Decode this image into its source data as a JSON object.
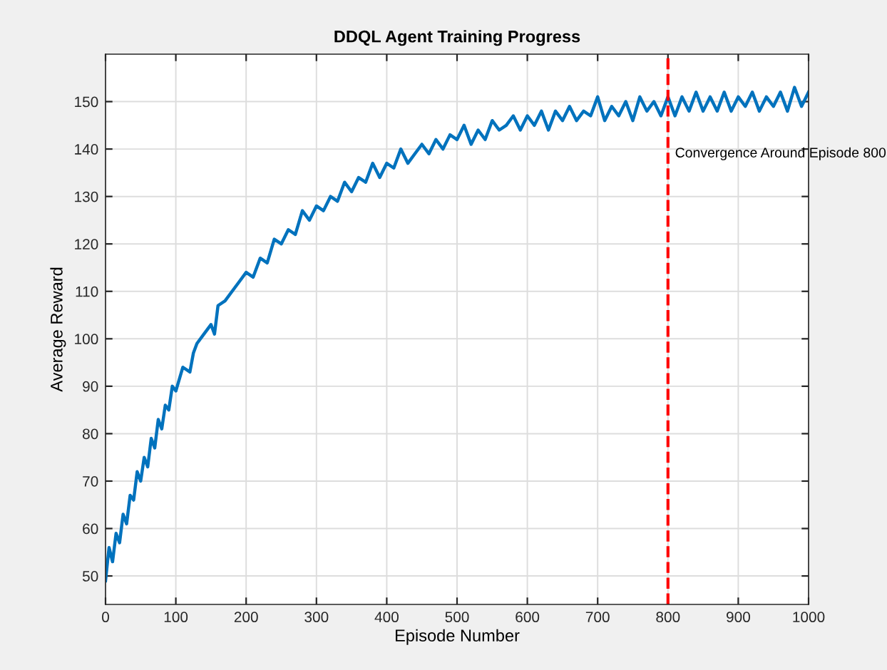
{
  "chart_data": {
    "type": "line",
    "title": "DDQL Agent Training Progress",
    "xlabel": "Episode Number",
    "ylabel": "Average Reward",
    "x": [
      0,
      5,
      10,
      15,
      20,
      25,
      30,
      35,
      40,
      45,
      50,
      55,
      60,
      65,
      70,
      75,
      80,
      85,
      90,
      95,
      100,
      110,
      120,
      125,
      130,
      140,
      150,
      155,
      160,
      170,
      180,
      190,
      200,
      210,
      220,
      230,
      240,
      250,
      260,
      270,
      280,
      290,
      300,
      310,
      320,
      330,
      340,
      350,
      360,
      370,
      380,
      390,
      400,
      410,
      420,
      430,
      440,
      450,
      460,
      470,
      480,
      490,
      500,
      510,
      520,
      530,
      540,
      550,
      560,
      570,
      580,
      590,
      600,
      610,
      620,
      630,
      640,
      650,
      660,
      670,
      680,
      690,
      700,
      710,
      720,
      730,
      740,
      750,
      760,
      770,
      780,
      790,
      800,
      810,
      820,
      830,
      840,
      850,
      860,
      870,
      880,
      890,
      900,
      910,
      920,
      930,
      940,
      950,
      960,
      970,
      980,
      990,
      1000
    ],
    "series": [
      {
        "color": "#0072bd",
        "values": [
          49,
          56,
          53,
          59,
          57,
          63,
          61,
          67,
          66,
          72,
          70,
          75,
          73,
          79,
          77,
          83,
          81,
          86,
          85,
          90,
          89,
          94,
          93,
          97,
          99,
          101,
          103,
          101,
          107,
          108,
          110,
          112,
          114,
          113,
          117,
          116,
          121,
          120,
          123,
          122,
          127,
          125,
          128,
          127,
          130,
          129,
          133,
          131,
          134,
          133,
          137,
          134,
          137,
          136,
          140,
          137,
          139,
          141,
          139,
          142,
          140,
          143,
          142,
          145,
          141,
          144,
          142,
          146,
          144,
          145,
          147,
          144,
          147,
          145,
          148,
          144,
          148,
          146,
          149,
          146,
          148,
          147,
          151,
          146,
          149,
          147,
          150,
          146,
          151,
          148,
          150,
          147,
          151,
          147,
          151,
          148,
          152,
          148,
          151,
          148,
          152,
          148,
          151,
          149,
          152,
          148,
          151,
          149,
          152,
          148,
          153,
          149,
          152
        ]
      }
    ],
    "xlim": [
      0,
      1000
    ],
    "ylim": [
      44,
      160
    ],
    "xticks": [
      0,
      100,
      200,
      300,
      400,
      500,
      600,
      700,
      800,
      900,
      1000
    ],
    "yticks": [
      50,
      60,
      70,
      80,
      90,
      100,
      110,
      120,
      130,
      140,
      150
    ],
    "grid": true,
    "line_style": "solid",
    "marker": "none",
    "ref_lines": [
      {
        "axis": "x",
        "value": 800,
        "color": "#ff0000",
        "line_style": "dashed"
      }
    ],
    "annotations": [
      {
        "text": "Convergence Around Episode 800",
        "x": 810,
        "y": 139
      }
    ]
  }
}
